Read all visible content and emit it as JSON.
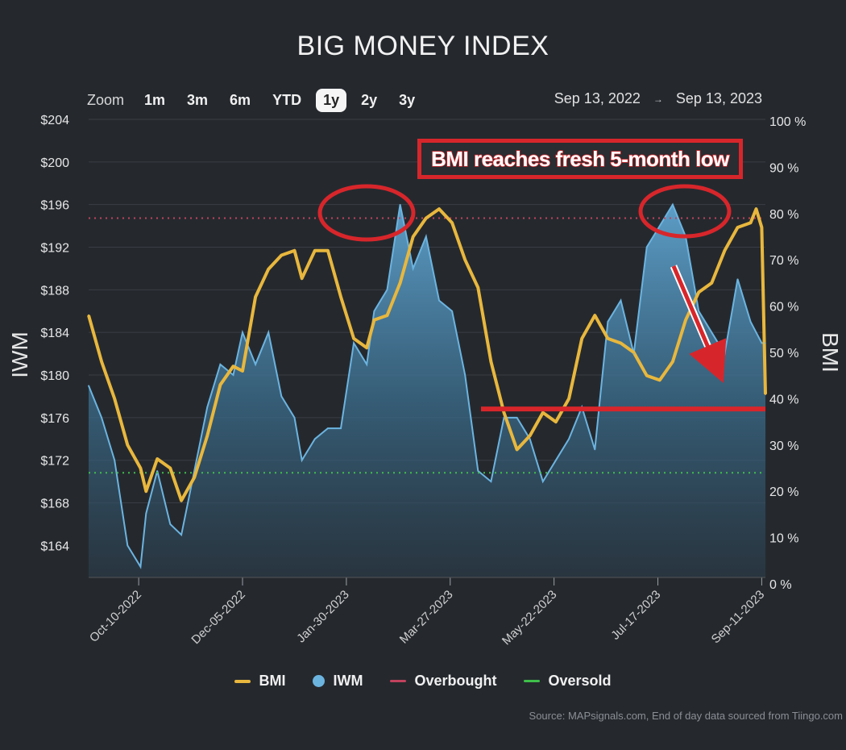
{
  "title": "BIG MONEY INDEX",
  "zoom": {
    "label": "Zoom",
    "options": [
      "1m",
      "3m",
      "6m",
      "YTD",
      "1y",
      "2y",
      "3y"
    ],
    "selected": "1y"
  },
  "range": {
    "from": "Sep 13, 2022",
    "arrow": "→",
    "to": "Sep 13, 2023"
  },
  "legend": {
    "bmi": "BMI",
    "iwm": "IWM",
    "overbought": "Overbought",
    "oversold": "Oversold"
  },
  "source": "Source: MAPsignals.com, End of day data sourced from Tiingo.com",
  "annotation": "BMI reaches fresh 5-month low",
  "colors": {
    "background": "#25292e",
    "bmi": "#e8b73d",
    "iwm": "#6cb4e0",
    "overbought": "#c2425e",
    "oversold": "#3fbf4a",
    "annotation": "#d7262b"
  },
  "chart_data": {
    "type": "line",
    "x_ticks": [
      "Oct-10-2022",
      "Dec-05-2022",
      "Jan-30-2023",
      "Mar-27-2023",
      "May-22-2023",
      "Jul-17-2023",
      "Sep-11-2023"
    ],
    "x_range": [
      "2022-09-13",
      "2023-09-13"
    ],
    "left_axis": {
      "label": "IWM",
      "ticks": [
        "$164",
        "$168",
        "$172",
        "$176",
        "$180",
        "$184",
        "$188",
        "$192",
        "$196",
        "$200",
        "$204"
      ],
      "ylim": [
        161,
        204
      ]
    },
    "right_axis": {
      "label": "BMI",
      "ticks": [
        "0 %",
        "10 %",
        "20 %",
        "30 %",
        "40 %",
        "50 %",
        "60 %",
        "70 %",
        "80 %",
        "90 %",
        "100 %"
      ],
      "ylim": [
        0,
        100
      ]
    },
    "overbought_level": 79,
    "oversold_level": 24,
    "support_level": 39,
    "series": [
      {
        "name": "BMI",
        "axis": "right",
        "points": [
          [
            "2022-09-13",
            58
          ],
          [
            "2022-09-20",
            48
          ],
          [
            "2022-09-27",
            40
          ],
          [
            "2022-10-04",
            30
          ],
          [
            "2022-10-11",
            25
          ],
          [
            "2022-10-14",
            20
          ],
          [
            "2022-10-20",
            27
          ],
          [
            "2022-10-27",
            25
          ],
          [
            "2022-11-02",
            18
          ],
          [
            "2022-11-09",
            23
          ],
          [
            "2022-11-16",
            32
          ],
          [
            "2022-11-23",
            43
          ],
          [
            "2022-11-30",
            47
          ],
          [
            "2022-12-05",
            46
          ],
          [
            "2022-12-12",
            62
          ],
          [
            "2022-12-19",
            68
          ],
          [
            "2022-12-26",
            71
          ],
          [
            "2023-01-02",
            72
          ],
          [
            "2023-01-06",
            66
          ],
          [
            "2023-01-13",
            72
          ],
          [
            "2023-01-20",
            72
          ],
          [
            "2023-01-27",
            62
          ],
          [
            "2023-02-03",
            53
          ],
          [
            "2023-02-10",
            51
          ],
          [
            "2023-02-14",
            57
          ],
          [
            "2023-02-21",
            58
          ],
          [
            "2023-02-28",
            65
          ],
          [
            "2023-03-07",
            75
          ],
          [
            "2023-03-14",
            79
          ],
          [
            "2023-03-21",
            81
          ],
          [
            "2023-03-28",
            78
          ],
          [
            "2023-04-04",
            70
          ],
          [
            "2023-04-11",
            64
          ],
          [
            "2023-04-18",
            48
          ],
          [
            "2023-04-25",
            37
          ],
          [
            "2023-05-02",
            29
          ],
          [
            "2023-05-09",
            32
          ],
          [
            "2023-05-16",
            37
          ],
          [
            "2023-05-23",
            35
          ],
          [
            "2023-05-30",
            40
          ],
          [
            "2023-06-06",
            53
          ],
          [
            "2023-06-13",
            58
          ],
          [
            "2023-06-20",
            53
          ],
          [
            "2023-06-27",
            52
          ],
          [
            "2023-07-04",
            50
          ],
          [
            "2023-07-11",
            45
          ],
          [
            "2023-07-18",
            44
          ],
          [
            "2023-07-25",
            48
          ],
          [
            "2023-08-01",
            57
          ],
          [
            "2023-08-08",
            63
          ],
          [
            "2023-08-15",
            65
          ],
          [
            "2023-08-22",
            72
          ],
          [
            "2023-08-29",
            77
          ],
          [
            "2023-09-05",
            78
          ],
          [
            "2023-09-08",
            81
          ],
          [
            "2023-09-11",
            77
          ],
          [
            "2023-09-13",
            41
          ]
        ]
      },
      {
        "name": "IWM",
        "axis": "left",
        "points": [
          [
            "2022-09-13",
            179
          ],
          [
            "2022-09-20",
            176
          ],
          [
            "2022-09-27",
            172
          ],
          [
            "2022-10-04",
            164
          ],
          [
            "2022-10-11",
            162
          ],
          [
            "2022-10-14",
            167
          ],
          [
            "2022-10-20",
            171
          ],
          [
            "2022-10-27",
            166
          ],
          [
            "2022-11-02",
            165
          ],
          [
            "2022-11-09",
            171
          ],
          [
            "2022-11-16",
            177
          ],
          [
            "2022-11-23",
            181
          ],
          [
            "2022-11-30",
            180
          ],
          [
            "2022-12-05",
            184
          ],
          [
            "2022-12-12",
            181
          ],
          [
            "2022-12-19",
            184
          ],
          [
            "2022-12-26",
            178
          ],
          [
            "2023-01-02",
            176
          ],
          [
            "2023-01-06",
            172
          ],
          [
            "2023-01-13",
            174
          ],
          [
            "2023-01-20",
            175
          ],
          [
            "2023-01-27",
            175
          ],
          [
            "2023-02-03",
            183
          ],
          [
            "2023-02-10",
            181
          ],
          [
            "2023-02-14",
            186
          ],
          [
            "2023-02-21",
            188
          ],
          [
            "2023-02-28",
            196
          ],
          [
            "2023-03-07",
            190
          ],
          [
            "2023-03-14",
            193
          ],
          [
            "2023-03-21",
            187
          ],
          [
            "2023-03-28",
            186
          ],
          [
            "2023-04-04",
            180
          ],
          [
            "2023-04-11",
            171
          ],
          [
            "2023-04-18",
            170
          ],
          [
            "2023-04-25",
            176
          ],
          [
            "2023-05-02",
            176
          ],
          [
            "2023-05-09",
            174
          ],
          [
            "2023-05-16",
            170
          ],
          [
            "2023-05-23",
            172
          ],
          [
            "2023-05-30",
            174
          ],
          [
            "2023-06-06",
            177
          ],
          [
            "2023-06-13",
            173
          ],
          [
            "2023-06-20",
            185
          ],
          [
            "2023-06-27",
            187
          ],
          [
            "2023-07-04",
            182
          ],
          [
            "2023-07-11",
            192
          ],
          [
            "2023-07-18",
            194
          ],
          [
            "2023-07-25",
            196
          ],
          [
            "2023-08-01",
            193
          ],
          [
            "2023-08-08",
            186
          ],
          [
            "2023-08-15",
            184
          ],
          [
            "2023-08-22",
            182
          ],
          [
            "2023-08-29",
            189
          ],
          [
            "2023-09-05",
            185
          ],
          [
            "2023-09-08",
            184
          ],
          [
            "2023-09-11",
            183
          ],
          [
            "2023-09-13",
            183
          ]
        ]
      }
    ],
    "grid": true,
    "legend_position": "bottom-center"
  }
}
